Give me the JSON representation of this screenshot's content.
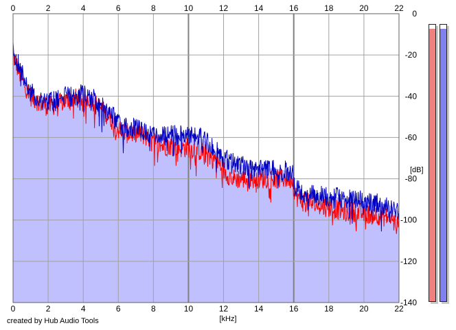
{
  "footer": {
    "credit": "created by Hub Audio Tools"
  },
  "chart_data": {
    "type": "line",
    "xlabel": "[kHz]",
    "ylabel": "[dB]",
    "xlim": [
      0,
      22
    ],
    "ylim": [
      -140,
      0
    ],
    "x_ticks": [
      "0",
      "2",
      "4",
      "6",
      "8",
      "10",
      "12",
      "14",
      "16",
      "18",
      "20",
      "22"
    ],
    "y_ticks": [
      "0",
      "-20",
      "-40",
      "-60",
      "-80",
      "-100",
      "-120",
      "-140"
    ],
    "grid": true,
    "colors": {
      "fill": "#c0c0ff",
      "grid": "#a0a0a0",
      "major_grid": "#808080",
      "left_channel": "#ff0000",
      "right_channel": "#0000c0",
      "meter_left": "#f08080",
      "meter_right": "#8080f0"
    },
    "x": [
      0,
      0.5,
      1,
      1.5,
      2,
      2.5,
      3,
      3.5,
      4,
      4.5,
      5,
      5.5,
      6,
      6.5,
      7,
      7.5,
      8,
      8.5,
      9,
      9.5,
      10,
      10.5,
      11,
      11.5,
      12,
      12.5,
      13,
      13.5,
      14,
      14.5,
      15,
      15.5,
      15.9,
      16.1,
      16.5,
      17,
      17.5,
      18,
      18.5,
      19,
      19.5,
      20,
      20.5,
      21,
      21.5,
      22
    ],
    "series": [
      {
        "values": [
          -20,
          -32,
          -40,
          -43,
          -45,
          -44,
          -42,
          -41,
          -41,
          -42,
          -46,
          -50,
          -56,
          -58,
          -58,
          -59,
          -62,
          -64,
          -64,
          -65,
          -65,
          -66,
          -68,
          -70,
          -76,
          -80,
          -80,
          -80,
          -80,
          -80,
          -80,
          -80,
          -80,
          -88,
          -91,
          -92,
          -93,
          -94,
          -95,
          -96,
          -96,
          -97,
          -97,
          -98,
          -99,
          -104
        ]
      },
      {
        "values": [
          -18,
          -28,
          -38,
          -42,
          -42,
          -42,
          -40,
          -40,
          -39,
          -40,
          -44,
          -48,
          -53,
          -55,
          -56,
          -57,
          -58,
          -59,
          -59,
          -59,
          -58,
          -59,
          -62,
          -66,
          -70,
          -72,
          -73,
          -74,
          -74,
          -75,
          -75,
          -76,
          -77,
          -84,
          -87,
          -88,
          -88,
          -89,
          -89,
          -90,
          -90,
          -91,
          -91,
          -92,
          -93,
          -96
        ]
      }
    ],
    "meters": [
      {
        "level": -2
      },
      {
        "level": -2
      }
    ]
  }
}
